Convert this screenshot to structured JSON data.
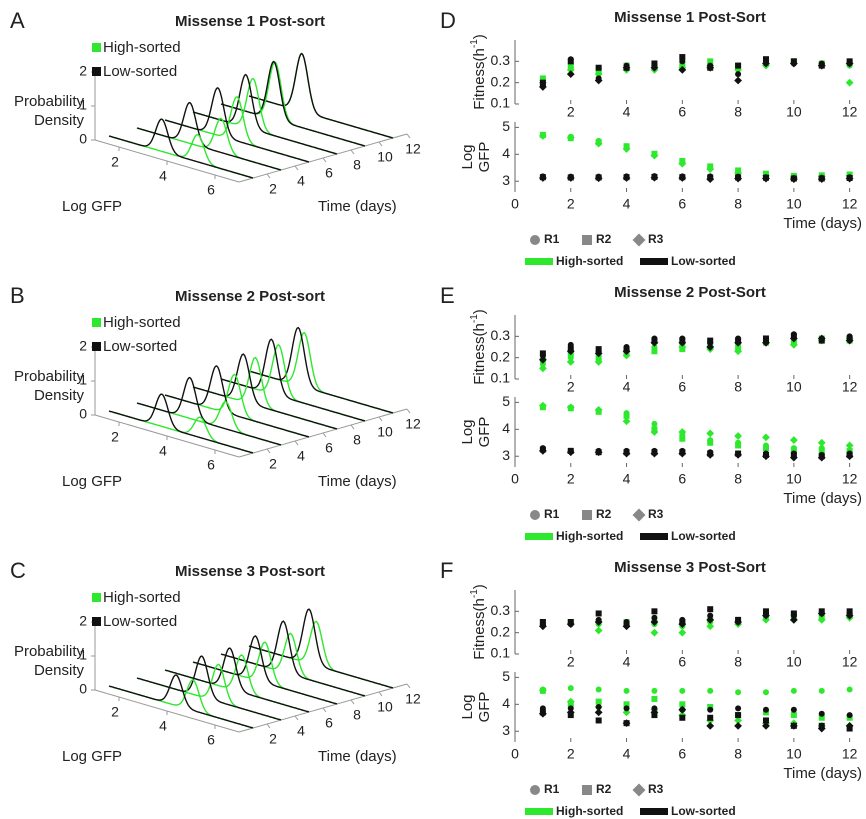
{
  "chart_data": [
    {
      "type": "waterfall",
      "label": "A",
      "title": "Missense 1 Post-sort",
      "xlabel": "Log GFP",
      "ylabel": [
        "Probability",
        "Density"
      ],
      "tlabel": "Time (days)",
      "xlim": [
        1,
        7
      ],
      "xticks": [
        2,
        4,
        6
      ],
      "ylim": [
        0,
        2
      ],
      "yticks": [
        0,
        1,
        2
      ],
      "tlim": [
        0,
        12
      ],
      "tticks": [
        2,
        4,
        6,
        8,
        10,
        12
      ],
      "x": [
        1,
        3,
        5,
        7,
        9,
        11
      ],
      "series": [
        {
          "name": "High-sorted",
          "color": "#2ee82e",
          "values": [
            4.7,
            4.5,
            4.0,
            3.5,
            3.25,
            3.2
          ],
          "peak_density": [
            0.8,
            1.0,
            1.3,
            1.5,
            1.7,
            1.7
          ]
        },
        {
          "name": "Low-sorted",
          "color": "#111111",
          "values": [
            3.2,
            3.2,
            3.2,
            3.2,
            3.2,
            3.2
          ],
          "peak_density": [
            0.95,
            1.2,
            1.4,
            1.55,
            1.7,
            1.7
          ]
        }
      ]
    },
    {
      "type": "waterfall",
      "label": "B",
      "title": "Missense 2 Post-sort",
      "xlabel": "Log GFP",
      "ylabel": [
        "Probability",
        "Density"
      ],
      "tlabel": "Time (days)",
      "xlim": [
        1,
        7
      ],
      "xticks": [
        2,
        4,
        6
      ],
      "ylim": [
        0,
        2
      ],
      "yticks": [
        0,
        1,
        2
      ],
      "tlim": [
        0,
        12
      ],
      "tticks": [
        2,
        4,
        6,
        8,
        10,
        12
      ],
      "x": [
        1,
        3,
        5,
        7,
        9,
        11
      ],
      "series": [
        {
          "name": "High-sorted",
          "color": "#2ee82e",
          "values": [
            4.8,
            4.7,
            3.9,
            3.6,
            3.4,
            3.3
          ],
          "peak_density": [
            0.6,
            0.8,
            1.2,
            1.4,
            1.5,
            1.6
          ]
        },
        {
          "name": "Low-sorted",
          "color": "#111111",
          "values": [
            3.2,
            3.2,
            3.15,
            3.1,
            3.1,
            3.05
          ],
          "peak_density": [
            0.95,
            1.2,
            1.3,
            1.4,
            1.6,
            1.7
          ]
        }
      ]
    },
    {
      "type": "waterfall",
      "label": "C",
      "title": "Missense 3 Post-sort",
      "xlabel": "Log GFP",
      "ylabel": [
        "Probability",
        "Density"
      ],
      "tlabel": "Time (days)",
      "xlim": [
        1,
        7
      ],
      "xticks": [
        2,
        4,
        6
      ],
      "ylim": [
        0,
        2
      ],
      "yticks": [
        0,
        1,
        2
      ],
      "tlim": [
        0,
        12
      ],
      "tticks": [
        2,
        4,
        6,
        8,
        10,
        12
      ],
      "x": [
        1,
        3,
        5,
        7,
        9,
        11
      ],
      "series": [
        {
          "name": "High-sorted",
          "color": "#2ee82e",
          "values": [
            4.5,
            4.4,
            4.2,
            4.0,
            3.9,
            3.8
          ],
          "peak_density": [
            0.9,
            1.1,
            1.1,
            1.2,
            1.2,
            1.3
          ]
        },
        {
          "name": "Low-sorted",
          "color": "#111111",
          "values": [
            3.8,
            3.7,
            3.7,
            3.6,
            3.6,
            3.5
          ],
          "peak_density": [
            0.9,
            1.2,
            1.2,
            1.3,
            1.5,
            1.6
          ]
        }
      ]
    },
    {
      "type": "scatter2",
      "label": "D",
      "title": "Missense 1 Post-Sort",
      "xlabel": "Time (days)",
      "ylabel_top": [
        "Fitness(h",
        "-1",
        ")"
      ],
      "ylabel": [
        "Log",
        "GFP"
      ],
      "x": [
        1,
        2,
        3,
        4,
        5,
        6,
        7,
        8,
        9,
        10,
        11,
        12
      ],
      "xlim": [
        0,
        12.3
      ],
      "xticks": [
        0,
        2,
        4,
        6,
        8,
        10,
        12
      ],
      "xticks_top": [
        2,
        4,
        6,
        8,
        10,
        12
      ],
      "ylim_top": [
        0.1,
        0.4
      ],
      "yticks_top": [
        0.1,
        0.2,
        0.3
      ],
      "ylim": [
        2.6,
        5.2
      ],
      "yticks": [
        3,
        4,
        5
      ],
      "marker_color": "#888888",
      "markers": [
        {
          "name": "R1",
          "shape": "circle"
        },
        {
          "name": "R2",
          "shape": "square"
        },
        {
          "name": "R3",
          "shape": "diamond"
        }
      ],
      "series": [
        {
          "name": "High-sorted",
          "color": "#2ee82e",
          "replicates": [
            {
              "fitness": [
                0.21,
                0.27,
                0.25,
                0.27,
                0.27,
                0.28,
                0.29,
                0.27,
                0.3,
                0.29,
                0.29,
                0.28
              ],
              "values": [
                4.7,
                4.65,
                4.5,
                4.25,
                4.0,
                3.7,
                3.5,
                3.35,
                3.25,
                3.2,
                3.2,
                3.2
              ]
            },
            {
              "fitness": [
                0.22,
                0.28,
                0.26,
                0.28,
                0.28,
                0.29,
                0.3,
                0.28,
                0.29,
                0.3,
                0.29,
                0.29
              ],
              "values": [
                4.72,
                4.6,
                4.45,
                4.3,
                4.02,
                3.75,
                3.55,
                3.4,
                3.28,
                3.2,
                3.22,
                3.25
              ]
            },
            {
              "fitness": [
                0.2,
                0.26,
                0.24,
                0.26,
                0.26,
                0.27,
                0.28,
                0.26,
                0.28,
                0.29,
                0.28,
                0.2
              ],
              "values": [
                4.68,
                4.62,
                4.4,
                4.2,
                3.95,
                3.65,
                3.45,
                3.3,
                3.2,
                3.15,
                3.18,
                3.2
              ]
            }
          ]
        },
        {
          "name": "Low-sorted",
          "color": "#111111",
          "replicates": [
            {
              "fitness": [
                0.19,
                0.31,
                0.22,
                0.28,
                0.28,
                0.3,
                0.28,
                0.24,
                0.3,
                0.29,
                0.29,
                0.29
              ],
              "values": [
                3.18,
                3.17,
                3.17,
                3.18,
                3.19,
                3.18,
                3.18,
                3.17,
                3.15,
                3.12,
                3.13,
                3.15
              ]
            },
            {
              "fitness": [
                0.2,
                0.3,
                0.27,
                0.27,
                0.29,
                0.32,
                0.27,
                0.28,
                0.31,
                0.3,
                0.28,
                0.3
              ],
              "values": [
                3.15,
                3.14,
                3.14,
                3.15,
                3.16,
                3.15,
                3.14,
                3.14,
                3.13,
                3.1,
                3.1,
                3.12
              ]
            },
            {
              "fitness": [
                0.18,
                0.24,
                0.21,
                0.27,
                0.27,
                0.26,
                0.27,
                0.21,
                0.29,
                0.29,
                0.28,
                0.29
              ],
              "values": [
                3.12,
                3.12,
                3.11,
                3.12,
                3.13,
                3.12,
                3.08,
                3.1,
                3.1,
                3.08,
                3.08,
                3.1
              ]
            }
          ]
        }
      ]
    },
    {
      "type": "scatter2",
      "label": "E",
      "title": "Missense 2 Post-Sort",
      "xlabel": "Time (days)",
      "ylabel_top": [
        "Fitness(h",
        "-1",
        ")"
      ],
      "ylabel": [
        "Log",
        "GFP"
      ],
      "x": [
        1,
        2,
        3,
        4,
        5,
        6,
        7,
        8,
        9,
        10,
        11,
        12
      ],
      "xlim": [
        0,
        12.3
      ],
      "xticks": [
        0,
        2,
        4,
        6,
        8,
        10,
        12
      ],
      "xticks_top": [
        2,
        4,
        6,
        8,
        10,
        12
      ],
      "ylim_top": [
        0.1,
        0.4
      ],
      "yticks_top": [
        0.1,
        0.2,
        0.3
      ],
      "ylim": [
        2.6,
        5.2
      ],
      "yticks": [
        3,
        4,
        5
      ],
      "marker_color": "#888888",
      "markers": [
        {
          "name": "R1",
          "shape": "circle"
        },
        {
          "name": "R2",
          "shape": "square"
        },
        {
          "name": "R3",
          "shape": "diamond"
        }
      ],
      "series": [
        {
          "name": "High-sorted",
          "color": "#2ee82e",
          "replicates": [
            {
              "fitness": [
                0.17,
                0.2,
                0.19,
                0.22,
                0.25,
                0.26,
                0.25,
                0.26,
                0.27,
                0.28,
                0.28,
                0.29
              ],
              "values": [
                4.85,
                4.8,
                4.7,
                4.6,
                4.2,
                3.8,
                3.6,
                3.5,
                3.4,
                3.3,
                3.3,
                3.2
              ]
            },
            {
              "fitness": [
                0.19,
                0.22,
                0.2,
                0.23,
                0.23,
                0.24,
                0.26,
                0.24,
                0.27,
                0.27,
                0.29,
                0.28
              ],
              "values": [
                4.82,
                4.78,
                4.65,
                4.5,
                4.0,
                3.65,
                3.5,
                3.4,
                3.3,
                3.25,
                3.2,
                3.2
              ]
            },
            {
              "fitness": [
                0.15,
                0.18,
                0.18,
                0.21,
                0.27,
                0.25,
                0.24,
                0.23,
                0.27,
                0.26,
                0.28,
                0.29
              ],
              "values": [
                4.88,
                4.82,
                4.72,
                4.3,
                3.9,
                3.9,
                3.85,
                3.75,
                3.7,
                3.6,
                3.5,
                3.4
              ]
            }
          ]
        },
        {
          "name": "Low-sorted",
          "color": "#111111",
          "replicates": [
            {
              "fitness": [
                0.21,
                0.26,
                0.23,
                0.25,
                0.29,
                0.29,
                0.27,
                0.29,
                0.28,
                0.31,
                0.29,
                0.3
              ],
              "values": [
                3.3,
                3.2,
                3.2,
                3.2,
                3.2,
                3.2,
                3.15,
                3.1,
                3.1,
                3.1,
                3.05,
                3.1
              ]
            },
            {
              "fitness": [
                0.22,
                0.24,
                0.24,
                0.24,
                0.28,
                0.28,
                0.28,
                0.28,
                0.29,
                0.3,
                0.28,
                0.29
              ],
              "values": [
                3.25,
                3.2,
                3.15,
                3.15,
                3.15,
                3.15,
                3.1,
                3.1,
                3.05,
                3.05,
                3.0,
                3.05
              ]
            },
            {
              "fitness": [
                0.19,
                0.23,
                0.22,
                0.23,
                0.27,
                0.27,
                0.25,
                0.27,
                0.27,
                0.29,
                0.29,
                0.28
              ],
              "values": [
                3.2,
                3.15,
                3.15,
                3.1,
                3.1,
                3.1,
                3.05,
                3.05,
                3.0,
                2.95,
                2.95,
                3.0
              ]
            }
          ]
        }
      ]
    },
    {
      "type": "scatter2",
      "label": "F",
      "title": "Missense 3 Post-Sort",
      "xlabel": "Time (days)",
      "ylabel_top": [
        "Fitness(h",
        "-1",
        ")"
      ],
      "ylabel": [
        "Log",
        "GFP"
      ],
      "x": [
        1,
        2,
        3,
        4,
        5,
        6,
        7,
        8,
        9,
        10,
        11,
        12
      ],
      "xlim": [
        0,
        12.3
      ],
      "xticks": [
        0,
        2,
        4,
        6,
        8,
        10,
        12
      ],
      "xticks_top": [
        2,
        4,
        6,
        8,
        10,
        12
      ],
      "ylim_top": [
        0.1,
        0.4
      ],
      "yticks_top": [
        0.1,
        0.2,
        0.3
      ],
      "ylim": [
        2.6,
        5.2
      ],
      "yticks": [
        3,
        4,
        5
      ],
      "marker_color": "#888888",
      "markers": [
        {
          "name": "R1",
          "shape": "circle"
        },
        {
          "name": "R2",
          "shape": "square"
        },
        {
          "name": "R3",
          "shape": "diamond"
        }
      ],
      "series": [
        {
          "name": "High-sorted",
          "color": "#2ee82e",
          "replicates": [
            {
              "fitness": [
                0.24,
                0.24,
                0.24,
                0.24,
                0.24,
                0.23,
                0.25,
                0.25,
                0.27,
                0.27,
                0.28,
                0.29
              ],
              "values": [
                4.55,
                4.6,
                4.55,
                4.5,
                4.5,
                4.5,
                4.5,
                4.45,
                4.45,
                4.5,
                4.5,
                4.55
              ]
            },
            {
              "fitness": [
                0.25,
                0.25,
                0.25,
                0.25,
                0.25,
                0.24,
                0.26,
                0.25,
                0.28,
                0.28,
                0.27,
                0.28
              ],
              "values": [
                4.5,
                4.0,
                4.1,
                4.0,
                4.2,
                4.0,
                3.9,
                3.6,
                3.7,
                3.6,
                3.5,
                3.5
              ]
            },
            {
              "fitness": [
                0.23,
                0.24,
                0.21,
                0.23,
                0.2,
                0.2,
                0.23,
                0.24,
                0.26,
                0.26,
                0.26,
                0.27
              ],
              "values": [
                4.52,
                4.1,
                3.9,
                3.7,
                3.8,
                3.6,
                3.4,
                3.4,
                3.3,
                3.3,
                3.2,
                3.2
              ]
            }
          ]
        },
        {
          "name": "Low-sorted",
          "color": "#111111",
          "replicates": [
            {
              "fitness": [
                0.24,
                0.24,
                0.26,
                0.25,
                0.27,
                0.26,
                0.28,
                0.25,
                0.29,
                0.28,
                0.29,
                0.29
              ],
              "values": [
                3.85,
                3.85,
                3.9,
                3.85,
                3.85,
                3.8,
                3.8,
                3.85,
                3.8,
                3.8,
                3.65,
                3.6
              ]
            },
            {
              "fitness": [
                0.25,
                0.25,
                0.29,
                0.24,
                0.3,
                0.25,
                0.31,
                0.26,
                0.3,
                0.29,
                0.3,
                0.3
              ],
              "values": [
                3.7,
                3.6,
                3.4,
                3.3,
                3.6,
                3.5,
                3.5,
                3.6,
                3.4,
                3.2,
                3.2,
                3.1
              ]
            },
            {
              "fitness": [
                0.23,
                0.24,
                0.25,
                0.23,
                0.25,
                0.24,
                0.26,
                0.25,
                0.28,
                0.26,
                0.29,
                0.28
              ],
              "values": [
                3.65,
                3.7,
                3.7,
                3.3,
                3.7,
                3.8,
                3.2,
                3.2,
                3.2,
                3.2,
                3.1,
                3.2
              ]
            }
          ]
        }
      ]
    }
  ]
}
